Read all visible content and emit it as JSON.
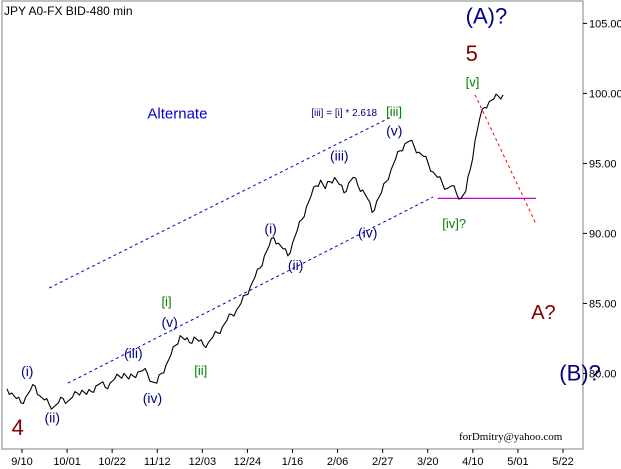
{
  "chart_data": {
    "type": "line",
    "title": "JPY A0-FX BID-480 min",
    "footer": "forDmitry@yahoo.com",
    "y_ticks": [
      80,
      85,
      90,
      95,
      100,
      105
    ],
    "y_tick_labels": [
      "80.00",
      "85.00",
      "90.00",
      "95.00",
      "100.00",
      "105.00"
    ],
    "ylim": [
      74.6,
      106.6
    ],
    "x_tick_labels": [
      "9/10",
      "10/01",
      "10/22",
      "11/12",
      "12/03",
      "12/24",
      "1/16",
      "2/06",
      "2/27",
      "3/20",
      "4/10",
      "5/01",
      "5/22"
    ],
    "series": [
      {
        "values": [
          78.9,
          78.6,
          78.2,
          77.9,
          78.3,
          78.8,
          79.1,
          78.4,
          78.1,
          77.8,
          77.6,
          77.9,
          78.2,
          78.0,
          78.3,
          78.6,
          78.8,
          78.5,
          78.7,
          79.1,
          79.3,
          79.0,
          79.3,
          79.6,
          79.8,
          80.0,
          79.6,
          79.8,
          80.1,
          80.2,
          80.0,
          79.4,
          79.3,
          80.0,
          80.6,
          81.3,
          82.0,
          82.7,
          82.4,
          82.2,
          82.6,
          82.3,
          82.0,
          82.2,
          82.6,
          82.9,
          83.3,
          83.8,
          84.2,
          84.5,
          85.0,
          85.6,
          86.2,
          86.9,
          87.5,
          88.4,
          89.1,
          89.7,
          89.3,
          88.9,
          88.4,
          89.3,
          90.2,
          91.0,
          91.9,
          92.7,
          93.4,
          93.8,
          93.2,
          93.7,
          94.0,
          93.5,
          92.9,
          93.6,
          94.0,
          93.4,
          93.1,
          92.5,
          91.5,
          92.3,
          92.9,
          93.7,
          94.5,
          95.3,
          95.9,
          96.4,
          96.6,
          96.2,
          95.8,
          95.5,
          95.0,
          94.4,
          94.0,
          93.6,
          93.2,
          93.4,
          92.9,
          92.5,
          93.0,
          94.6,
          96.6,
          98.2,
          99.0,
          99.4,
          99.6,
          99.8,
          99.9
        ]
      }
    ],
    "channel_lines": [
      {
        "start": [
          9,
          86.1
        ],
        "end": [
          82,
          98.3
        ]
      },
      {
        "start": [
          13,
          79.3
        ],
        "end": [
          91,
          92.6
        ]
      }
    ],
    "forecast_line": {
      "start": [
        100,
        99.9
      ],
      "end": [
        113,
        90.7
      ]
    },
    "horizontal_line": {
      "y": 92.5,
      "x_from": 92,
      "x_to": 113
    },
    "annotations": [
      {
        "text": "(A)?",
        "x": 98,
        "y": 105.0,
        "color": "#000080",
        "size": 22
      },
      {
        "text": "5",
        "x": 98,
        "y": 102.3,
        "color": "#800000",
        "size": 22
      },
      {
        "text": "[v]",
        "x": 98,
        "y": 100.5,
        "color": "#008000",
        "size": 13
      },
      {
        "text": "Alternate",
        "x": 30,
        "y": 98.2,
        "color": "#0000cc",
        "size": 15
      },
      {
        "text": "[iii] = [i] * 2.618",
        "x": 65,
        "y": 98.4,
        "color": "#000080",
        "size": 10
      },
      {
        "text": "[iii]",
        "x": 81,
        "y": 98.4,
        "color": "#008000",
        "size": 13
      },
      {
        "text": "(v)",
        "x": 81,
        "y": 97.0,
        "color": "#000080",
        "size": 14
      },
      {
        "text": "(iii)",
        "x": 69,
        "y": 95.2,
        "color": "#000080",
        "size": 14
      },
      {
        "text": "(iv)",
        "x": 75,
        "y": 89.7,
        "color": "#000080",
        "size": 14
      },
      {
        "text": "[iv]?",
        "x": 93,
        "y": 90.4,
        "color": "#008000",
        "size": 13
      },
      {
        "text": "(i)",
        "x": 55,
        "y": 90.0,
        "color": "#000080",
        "size": 14
      },
      {
        "text": "(ii)",
        "x": 60,
        "y": 87.4,
        "color": "#000080",
        "size": 14
      },
      {
        "text": "[i]",
        "x": 33,
        "y": 84.8,
        "color": "#008000",
        "size": 13
      },
      {
        "text": "(v)",
        "x": 33,
        "y": 83.3,
        "color": "#000080",
        "size": 14
      },
      {
        "text": "[ii]",
        "x": 40,
        "y": 79.9,
        "color": "#008000",
        "size": 13
      },
      {
        "text": "(iii)",
        "x": 25,
        "y": 81.1,
        "color": "#000080",
        "size": 14
      },
      {
        "text": "(iv)",
        "x": 29,
        "y": 77.9,
        "color": "#000080",
        "size": 14
      },
      {
        "text": "(i)",
        "x": 3,
        "y": 79.8,
        "color": "#000080",
        "size": 14
      },
      {
        "text": "(ii)",
        "x": 8,
        "y": 76.5,
        "color": "#000080",
        "size": 14
      },
      {
        "text": "4",
        "x": 1,
        "y": 75.6,
        "color": "#800000",
        "size": 22
      },
      {
        "text": "A?",
        "x": 112,
        "y": 83.9,
        "color": "#800000",
        "size": 20
      },
      {
        "text": "(B)?",
        "x": 118,
        "y": 79.5,
        "color": "#000080",
        "size": 22
      }
    ]
  },
  "colors": {
    "price": "#000000",
    "channel": "#0000cc",
    "forecast": "#ff0000",
    "horizontal": "#cc00cc",
    "frame": "#808080",
    "grid": "#c8c8c8",
    "background": "#ffffff"
  }
}
